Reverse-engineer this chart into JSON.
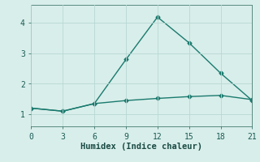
{
  "line1_x": [
    0,
    3,
    6,
    9,
    12,
    15,
    18,
    21
  ],
  "line1_y": [
    1.2,
    1.1,
    1.35,
    2.8,
    4.2,
    3.35,
    2.35,
    1.45
  ],
  "line2_x": [
    0,
    3,
    6,
    9,
    12,
    15,
    18,
    21
  ],
  "line2_y": [
    1.2,
    1.1,
    1.35,
    1.45,
    1.52,
    1.58,
    1.62,
    1.48
  ],
  "line_color": "#1a7a6e",
  "background_color": "#d8eeea",
  "grid_color": "#b8d8d4",
  "xlabel": "Humidex (Indice chaleur)",
  "xlim": [
    0,
    21
  ],
  "ylim": [
    0.6,
    4.6
  ],
  "xticks": [
    0,
    3,
    6,
    9,
    12,
    15,
    18,
    21
  ],
  "yticks": [
    1,
    2,
    3,
    4
  ],
  "marker": "D",
  "markersize": 2.5,
  "linewidth": 1.0,
  "xlabel_fontsize": 7.5,
  "tick_fontsize": 7
}
